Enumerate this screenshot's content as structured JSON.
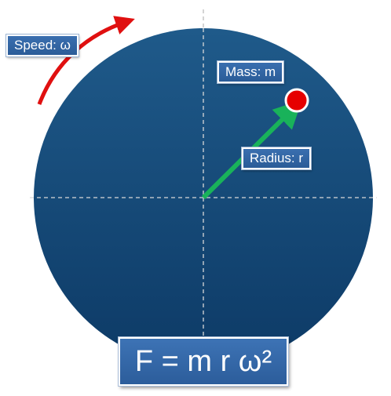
{
  "labels": {
    "speed": "Speed: ω",
    "mass": "Mass: m",
    "radius": "Radius: r",
    "formula": "F = m r ω²"
  },
  "colors": {
    "disc_top": "#1f5a8a",
    "disc_bottom": "#0d3a66",
    "radius_arrow": "#19b25a",
    "speed_arrow": "#e01010",
    "mass_fill": "#e60000",
    "axis_line": "#bcbcbc"
  },
  "icons": {
    "speed_arrow": "curved-arrow-icon",
    "radius_arrow": "straight-arrow-icon",
    "mass": "circle-dot-icon"
  }
}
